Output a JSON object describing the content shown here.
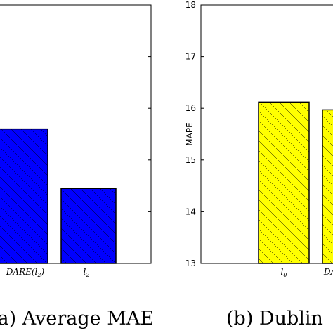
{
  "chart_data": [
    {
      "type": "bar",
      "title": "",
      "caption": "(a) Average MAE",
      "xlabel": "",
      "ylabel": "",
      "categories": [
        {
          "base": "DARE",
          "paren": "(l",
          "sub": "2",
          "close": ")"
        },
        {
          "base": "l",
          "paren": "",
          "sub": "2",
          "close": ""
        }
      ],
      "values": [
        15.6,
        14.45
      ],
      "ylim": [
        13,
        18
      ],
      "yticks": [],
      "bar_color": "#0000ff",
      "hatch": "\\",
      "grid": false
    },
    {
      "type": "bar",
      "title": "",
      "caption": "(b) Dublin",
      "xlabel": "",
      "ylabel": "MAPE",
      "categories": [
        {
          "base": "l",
          "paren": "",
          "sub": "0",
          "close": ""
        },
        {
          "base": "DA",
          "paren": "",
          "sub": "",
          "close": ""
        }
      ],
      "values": [
        16.12,
        15.97
      ],
      "ylim": [
        13,
        18
      ],
      "yticks": [
        "13",
        "14",
        "15",
        "16",
        "17",
        "18"
      ],
      "bar_color": "#ffff00",
      "hatch": "\\",
      "grid": false
    }
  ]
}
